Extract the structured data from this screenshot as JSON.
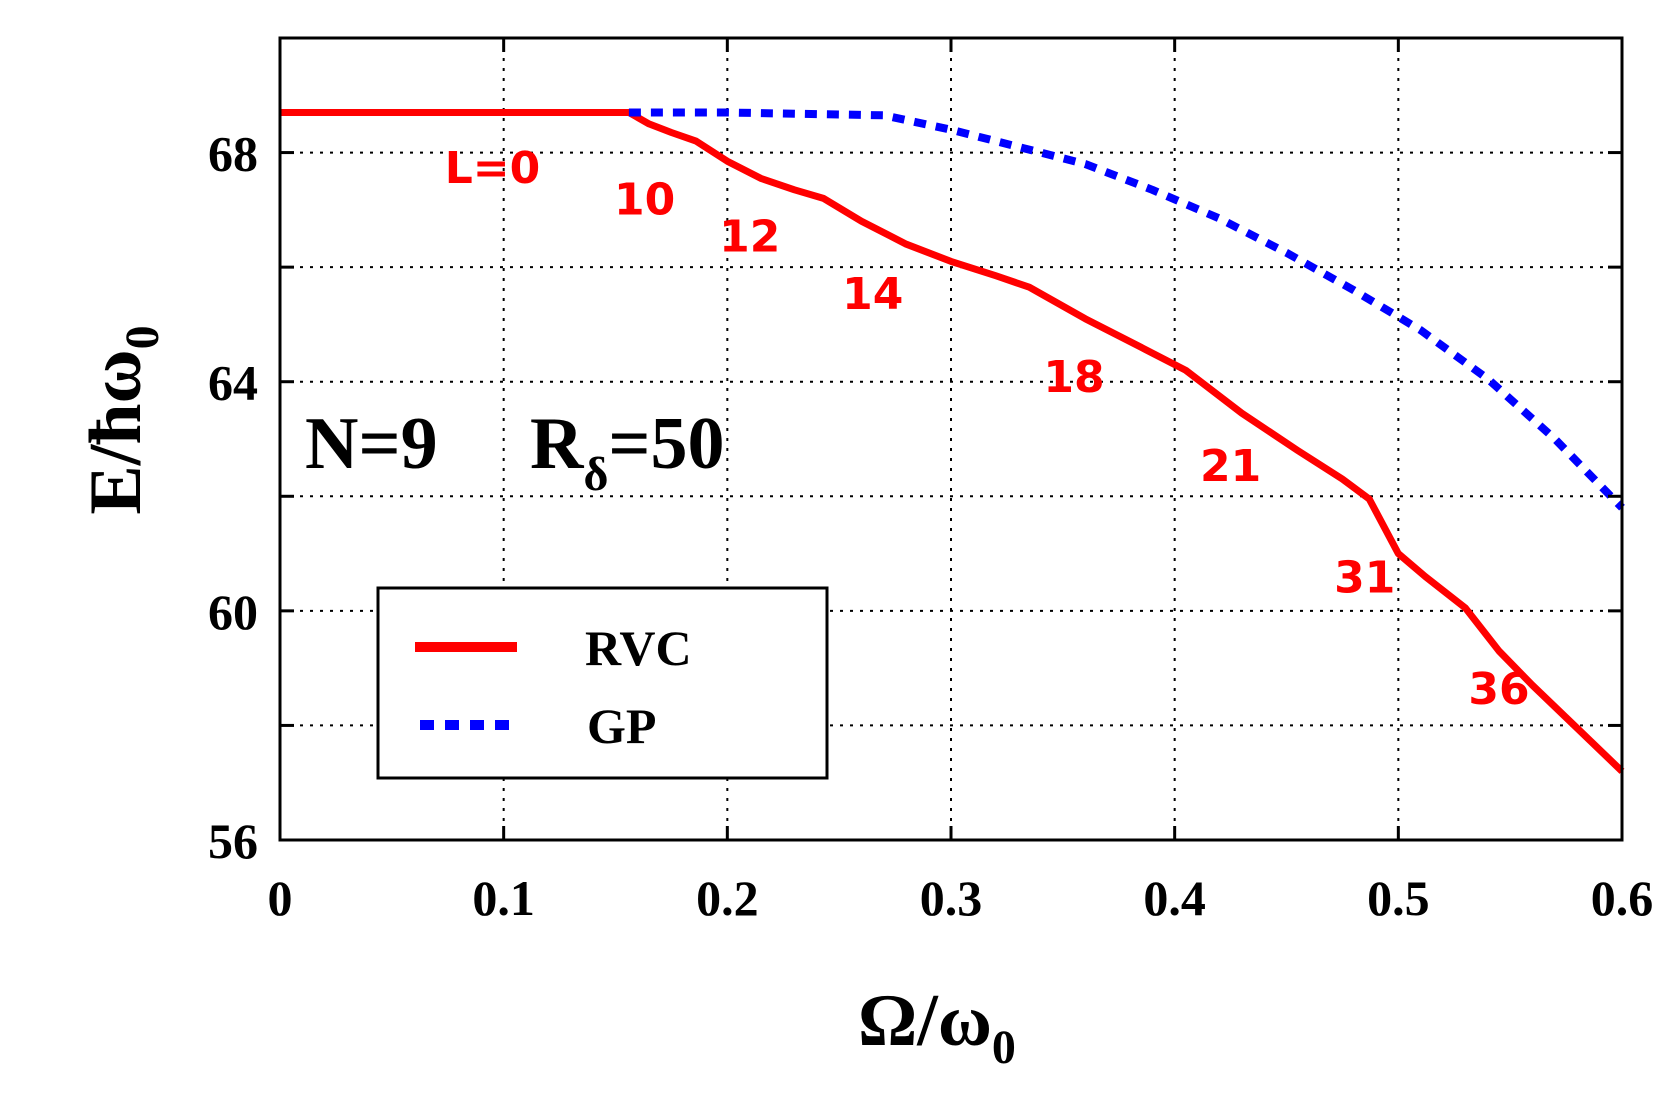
{
  "chart_data": {
    "type": "line",
    "xlabel": "Ω/ω",
    "xlabel_sub": "0",
    "ylabel": "E/ħω",
    "ylabel_sub": "0",
    "xlim": [
      0,
      0.6
    ],
    "ylim": [
      56,
      70
    ],
    "xticks": [
      0,
      0.1,
      0.2,
      0.3,
      0.4,
      0.5,
      0.6
    ],
    "xtick_labels": [
      "0",
      "0.1",
      "0.2",
      "0.3",
      "0.4",
      "0.5",
      "0.6"
    ],
    "yticks": [
      56,
      58,
      60,
      62,
      64,
      66,
      68,
      70
    ],
    "ytick_labels": [
      "56",
      "",
      "60",
      "",
      "64",
      "",
      "68",
      ""
    ],
    "grid": true,
    "legend_position": "bottom-left",
    "series": [
      {
        "name": "RVC",
        "color": "#ff0000",
        "style": "solid",
        "x": [
          0,
          0.156,
          0.165,
          0.175,
          0.186,
          0.2,
          0.215,
          0.23,
          0.243,
          0.26,
          0.28,
          0.3,
          0.32,
          0.335,
          0.36,
          0.385,
          0.405,
          0.43,
          0.455,
          0.475,
          0.487,
          0.5,
          0.512,
          0.53,
          0.545,
          0.56,
          0.58,
          0.6
        ],
        "values": [
          68.7,
          68.7,
          68.5,
          68.35,
          68.2,
          67.85,
          67.55,
          67.35,
          67.2,
          66.8,
          66.4,
          66.1,
          65.85,
          65.65,
          65.1,
          64.6,
          64.2,
          63.45,
          62.8,
          62.3,
          61.95,
          61.0,
          60.6,
          60.05,
          59.3,
          58.7,
          57.95,
          57.2
        ]
      },
      {
        "name": "GP",
        "color": "#0000ff",
        "style": "dotted",
        "x": [
          0.156,
          0.2,
          0.27,
          0.3,
          0.33,
          0.36,
          0.39,
          0.42,
          0.45,
          0.48,
          0.51,
          0.54,
          0.57,
          0.6
        ],
        "values": [
          68.7,
          68.7,
          68.65,
          68.4,
          68.1,
          67.8,
          67.35,
          66.85,
          66.25,
          65.6,
          64.9,
          64.05,
          63.0,
          61.8
        ]
      }
    ],
    "annotations": [
      {
        "text": "L=0",
        "x": 0.095,
        "y": 67.75
      },
      {
        "text": "10",
        "x": 0.163,
        "y": 67.2
      },
      {
        "text": "12",
        "x": 0.21,
        "y": 66.55
      },
      {
        "text": "14",
        "x": 0.265,
        "y": 65.55
      },
      {
        "text": "18",
        "x": 0.355,
        "y": 64.1
      },
      {
        "text": "21",
        "x": 0.425,
        "y": 62.55
      },
      {
        "text": "31",
        "x": 0.485,
        "y": 60.6
      },
      {
        "text": "36",
        "x": 0.545,
        "y": 58.65
      }
    ],
    "info": {
      "n_label": "N=9",
      "r_label": "R",
      "r_sub": "δ",
      "r_value": "=50"
    }
  }
}
